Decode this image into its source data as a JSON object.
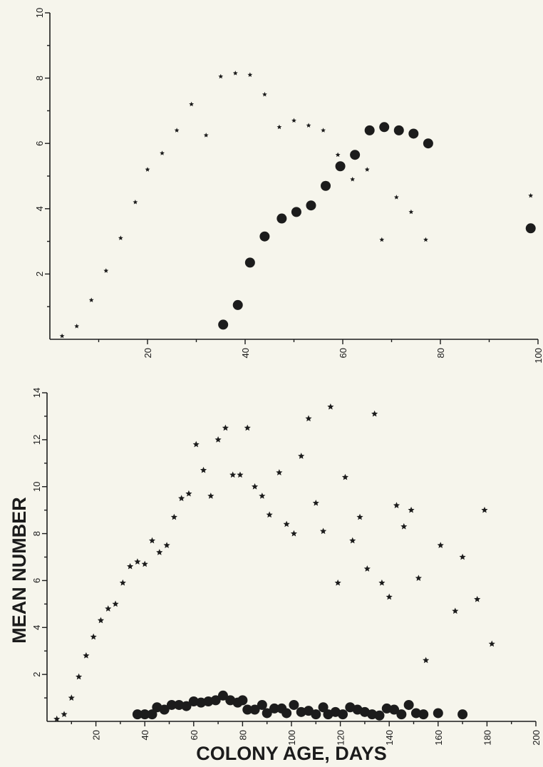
{
  "chart_data": [
    {
      "type": "scatter",
      "xlabel": "",
      "ylabel": "",
      "xlim": [
        0,
        100
      ],
      "ylim": [
        0,
        10
      ],
      "x_ticks": [
        "20",
        "40",
        "60",
        "80",
        "100"
      ],
      "y_ticks": [
        "2",
        "4",
        "6",
        "8",
        "10"
      ],
      "grid": false,
      "legend": "none",
      "series": [
        {
          "marker": "star",
          "points": [
            [
              2.5,
              0.1
            ],
            [
              5.5,
              0.4
            ],
            [
              8.5,
              1.2
            ],
            [
              11.5,
              2.1
            ],
            [
              14.5,
              3.1
            ],
            [
              17.5,
              4.2
            ],
            [
              20.0,
              5.2
            ],
            [
              23.0,
              5.7
            ],
            [
              26.0,
              6.4
            ],
            [
              29.0,
              7.2
            ],
            [
              32.0,
              6.25
            ],
            [
              35.0,
              8.05
            ],
            [
              38.0,
              8.15
            ],
            [
              41.0,
              8.1
            ],
            [
              44.0,
              7.5
            ],
            [
              47.0,
              6.5
            ],
            [
              50.0,
              6.7
            ],
            [
              53.0,
              6.55
            ],
            [
              56.0,
              6.4
            ],
            [
              59.0,
              5.65
            ],
            [
              62.0,
              4.9
            ],
            [
              65.0,
              5.2
            ],
            [
              68.0,
              3.05
            ],
            [
              71.0,
              4.35
            ],
            [
              74.0,
              3.9
            ],
            [
              77.0,
              3.05
            ],
            [
              98.5,
              4.4
            ]
          ]
        },
        {
          "marker": "dot",
          "points": [
            [
              35.5,
              0.45
            ],
            [
              38.5,
              1.05
            ],
            [
              41.0,
              2.35
            ],
            [
              44.0,
              3.15
            ],
            [
              47.5,
              3.7
            ],
            [
              50.5,
              3.9
            ],
            [
              53.5,
              4.1
            ],
            [
              56.5,
              4.7
            ],
            [
              59.5,
              5.3
            ],
            [
              62.5,
              5.65
            ],
            [
              65.5,
              6.4
            ],
            [
              68.5,
              6.5
            ],
            [
              71.5,
              6.4
            ],
            [
              74.5,
              6.3
            ],
            [
              77.5,
              6.0
            ],
            [
              98.5,
              3.4
            ]
          ]
        }
      ]
    },
    {
      "type": "scatter",
      "xlabel": "COLONY AGE, DAYS",
      "ylabel": "MEAN NUMBER",
      "xlim": [
        0,
        200
      ],
      "ylim": [
        0,
        14
      ],
      "x_ticks": [
        "20",
        "40",
        "60",
        "80",
        "100",
        "120",
        "140",
        "160",
        "180",
        "200"
      ],
      "y_ticks": [
        "2",
        "4",
        "6",
        "8",
        "10",
        "12",
        "14"
      ],
      "grid": false,
      "legend": "none",
      "series": [
        {
          "marker": "star",
          "points": [
            [
              4,
              0.1
            ],
            [
              7,
              0.3
            ],
            [
              10,
              1.0
            ],
            [
              13,
              1.9
            ],
            [
              16,
              2.8
            ],
            [
              19,
              3.6
            ],
            [
              22,
              4.3
            ],
            [
              25,
              4.8
            ],
            [
              28,
              5.0
            ],
            [
              31,
              5.9
            ],
            [
              34,
              6.6
            ],
            [
              37,
              6.8
            ],
            [
              40,
              6.7
            ],
            [
              43,
              7.7
            ],
            [
              46,
              7.2
            ],
            [
              49,
              7.5
            ],
            [
              52,
              8.7
            ],
            [
              55,
              9.5
            ],
            [
              58,
              9.7
            ],
            [
              61,
              11.8
            ],
            [
              64,
              10.7
            ],
            [
              67,
              9.6
            ],
            [
              70,
              12.0
            ],
            [
              73,
              12.5
            ],
            [
              76,
              10.5
            ],
            [
              79,
              10.5
            ],
            [
              82,
              12.5
            ],
            [
              85,
              10.0
            ],
            [
              88,
              9.6
            ],
            [
              91,
              8.8
            ],
            [
              95,
              10.6
            ],
            [
              98,
              8.4
            ],
            [
              101,
              8.0
            ],
            [
              104,
              11.3
            ],
            [
              107,
              12.9
            ],
            [
              110,
              9.3
            ],
            [
              113,
              8.1
            ],
            [
              116,
              13.4
            ],
            [
              119,
              5.9
            ],
            [
              122,
              10.4
            ],
            [
              125,
              7.7
            ],
            [
              128,
              8.7
            ],
            [
              131,
              6.5
            ],
            [
              134,
              13.1
            ],
            [
              137,
              5.9
            ],
            [
              140,
              5.3
            ],
            [
              143,
              9.2
            ],
            [
              146,
              8.3
            ],
            [
              149,
              9.0
            ],
            [
              152,
              6.1
            ],
            [
              155,
              2.6
            ],
            [
              161,
              7.5
            ],
            [
              167,
              4.7
            ],
            [
              170,
              7.0
            ],
            [
              176,
              5.2
            ],
            [
              179,
              9.0
            ],
            [
              182,
              3.3
            ]
          ]
        },
        {
          "marker": "dot",
          "points": [
            [
              37,
              0.3
            ],
            [
              40,
              0.3
            ],
            [
              43,
              0.3
            ],
            [
              45,
              0.6
            ],
            [
              48,
              0.5
            ],
            [
              51,
              0.7
            ],
            [
              54,
              0.7
            ],
            [
              57,
              0.65
            ],
            [
              60,
              0.85
            ],
            [
              63,
              0.8
            ],
            [
              66,
              0.85
            ],
            [
              69,
              0.9
            ],
            [
              72,
              1.1
            ],
            [
              75,
              0.9
            ],
            [
              78,
              0.8
            ],
            [
              80,
              0.9
            ],
            [
              82,
              0.5
            ],
            [
              85,
              0.5
            ],
            [
              88,
              0.7
            ],
            [
              90,
              0.35
            ],
            [
              93,
              0.55
            ],
            [
              96,
              0.55
            ],
            [
              98,
              0.35
            ],
            [
              101,
              0.7
            ],
            [
              104,
              0.4
            ],
            [
              107,
              0.45
            ],
            [
              110,
              0.3
            ],
            [
              113,
              0.6
            ],
            [
              115,
              0.3
            ],
            [
              118,
              0.4
            ],
            [
              121,
              0.3
            ],
            [
              124,
              0.6
            ],
            [
              127,
              0.5
            ],
            [
              130,
              0.4
            ],
            [
              133,
              0.3
            ],
            [
              136,
              0.25
            ],
            [
              139,
              0.55
            ],
            [
              142,
              0.5
            ],
            [
              145,
              0.3
            ],
            [
              148,
              0.7
            ],
            [
              151,
              0.35
            ],
            [
              154,
              0.3
            ],
            [
              160,
              0.35
            ],
            [
              170,
              0.3
            ]
          ]
        }
      ]
    }
  ]
}
